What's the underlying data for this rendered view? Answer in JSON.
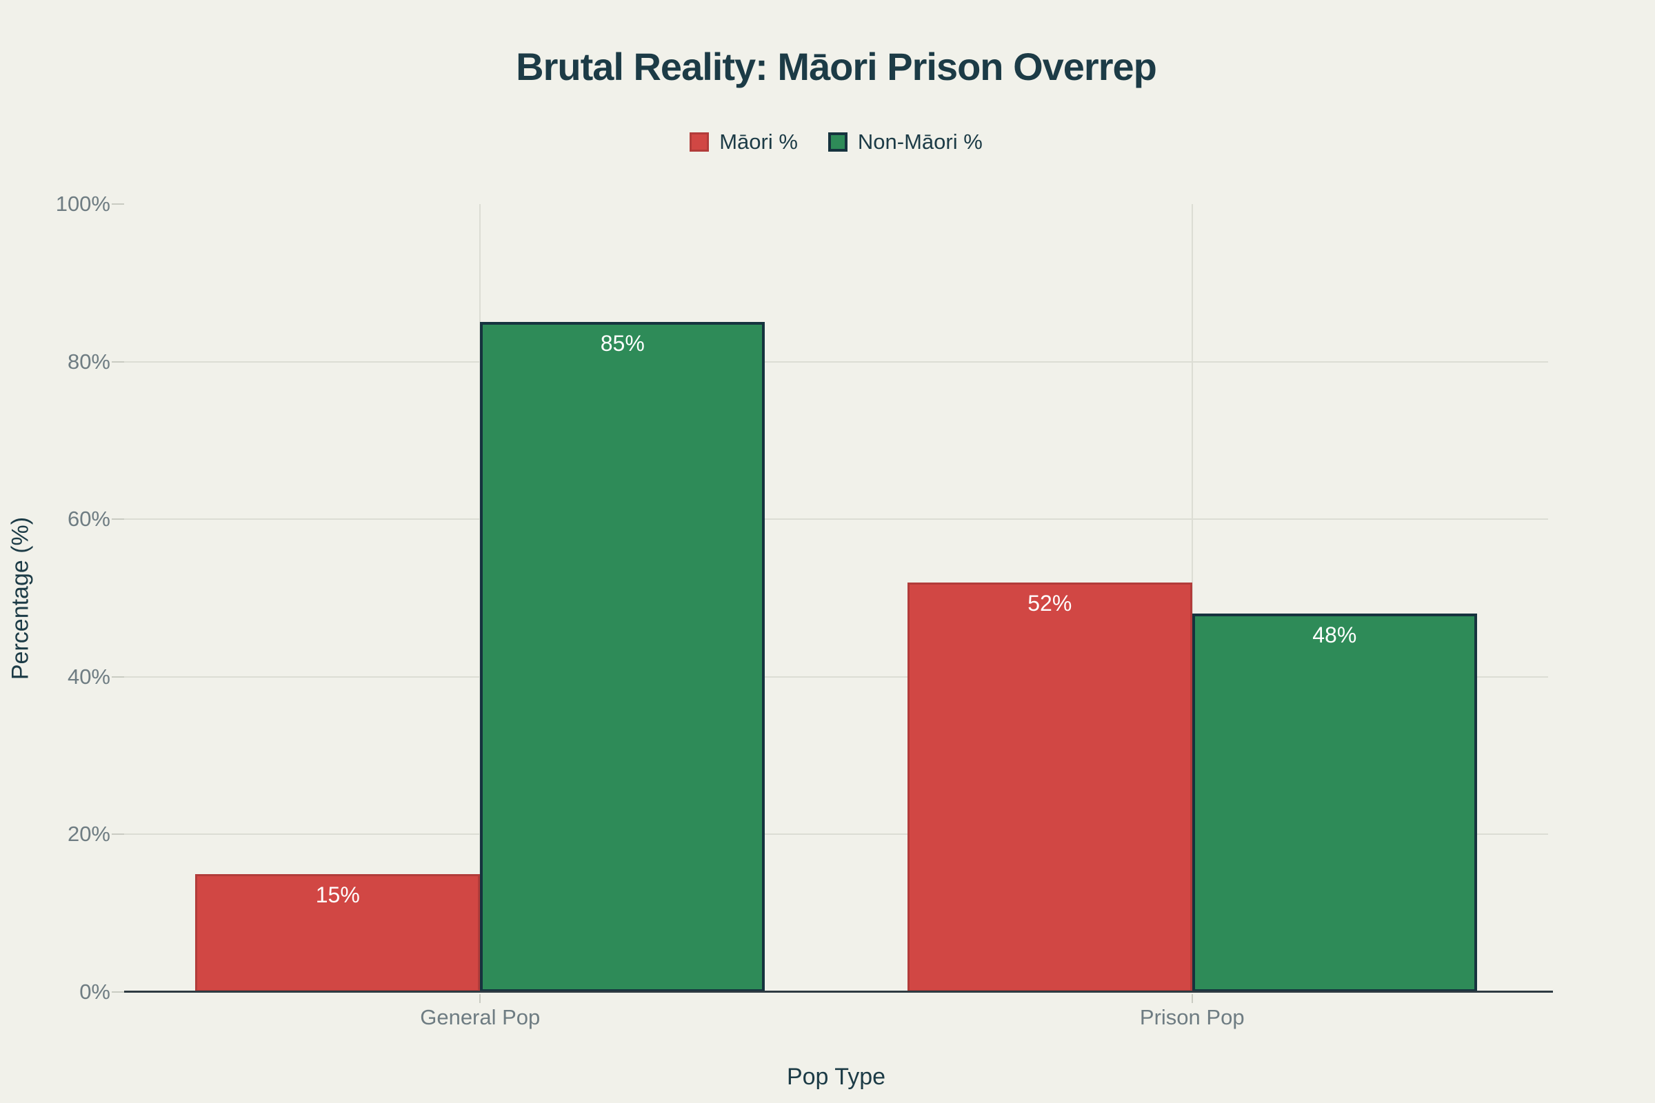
{
  "chart_data": {
    "type": "bar",
    "title": "Brutal Reality: Māori Prison Overrep",
    "categories": [
      "General Pop",
      "Prison Pop"
    ],
    "series": [
      {
        "name": "Māori %",
        "values": [
          15,
          52
        ],
        "fill": "#d14744",
        "border": "#b23c3a",
        "border_width": 3
      },
      {
        "name": "Non-Māori %",
        "values": [
          85,
          48
        ],
        "fill": "#2e8b58",
        "border": "#16333e",
        "border_width": 4
      }
    ],
    "value_label_suffix": "%",
    "value_label_position": "inside-top",
    "xlabel": "Pop Type",
    "ylabel": "Percentage (%)",
    "ylim": [
      0,
      100
    ],
    "ytick_values": [
      0,
      20,
      40,
      60,
      80,
      100
    ],
    "ytick_suffix": "%",
    "grid": {
      "horizontal_values": [
        20,
        40,
        60,
        80
      ],
      "vertical_at_categories": true
    },
    "legend_position": "top-center"
  },
  "colors": {
    "background": "#f1f1ea",
    "title_text": "#1c3b46",
    "axis_title_text": "#1c3b46",
    "legend_text": "#1c3b46",
    "tick_text": "#6e7c82",
    "grid_line": "#dcddd4",
    "axis_line": "#2e3b42",
    "bar_value_text": "#ffffff"
  }
}
